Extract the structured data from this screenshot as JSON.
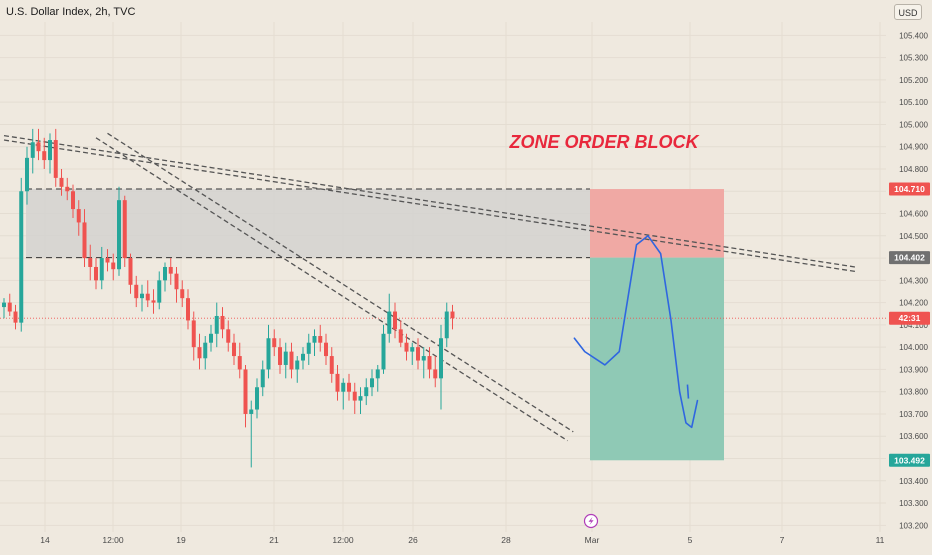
{
  "header": {
    "title": "U.S. Dollar Index, 2h, TVC",
    "currency_button": "USD"
  },
  "annotation": {
    "text": "ZONE ORDER BLOCK"
  },
  "colors": {
    "bg": "#efe9df",
    "grid": "#e4ddd2",
    "up": "#26a69a",
    "down": "#ef5350",
    "zone": "#d3d2d0",
    "stop": "#f0a9a4",
    "target": "#8fc9b5",
    "annotation": "#e8283c",
    "path": "#2f66e0",
    "trend": "#555555"
  },
  "chart_data": {
    "type": "candlestick",
    "symbol": "U.S. Dollar Index",
    "timeframe": "2h",
    "source": "TVC",
    "y_axis": {
      "range": [
        103.17,
        105.46
      ],
      "ticks": [
        103.2,
        103.3,
        103.4,
        103.5,
        103.6,
        103.7,
        103.8,
        103.9,
        104.0,
        104.1,
        104.2,
        104.3,
        104.4,
        104.5,
        104.6,
        104.7,
        104.8,
        104.9,
        105.0,
        105.1,
        105.2,
        105.3,
        105.4
      ],
      "tick_labels": [
        "103.200",
        "103.300",
        "103.400",
        "103.500",
        "103.600",
        "103.700",
        "103.800",
        "103.900",
        "104.000",
        "104.100",
        "104.200",
        "104.300",
        "104.400",
        "104.500",
        "104.600",
        "104.700",
        "104.800",
        "104.900",
        "105.000",
        "105.100",
        "105.200",
        "105.300",
        "105.400"
      ]
    },
    "x_axis": {
      "tick_labels": [
        "14",
        "12:00",
        "19",
        "21",
        "12:00",
        "26",
        "28",
        "Mar",
        "5",
        "7",
        "11"
      ]
    },
    "price_labels": [
      {
        "value": 104.71,
        "text": "104.710",
        "color": "#ef5350"
      },
      {
        "value": 104.402,
        "text": "104.402",
        "color": "#707070"
      },
      {
        "value": 104.13,
        "text": "42:31",
        "color": "#ef5350"
      },
      {
        "value": 103.492,
        "text": "103.492",
        "color": "#26a69a"
      }
    ],
    "zone": {
      "top": 104.71,
      "bottom": 104.402
    },
    "trade": {
      "entry": 104.402,
      "stop": 104.71,
      "target": 103.492
    },
    "candles": [
      [
        104.18,
        104.22,
        104.13,
        104.2
      ],
      [
        104.2,
        104.24,
        104.14,
        104.16
      ],
      [
        104.16,
        104.19,
        104.08,
        104.11
      ],
      [
        104.11,
        104.76,
        104.07,
        104.7
      ],
      [
        104.7,
        104.9,
        104.64,
        104.85
      ],
      [
        104.85,
        104.98,
        104.78,
        104.92
      ],
      [
        104.92,
        104.98,
        104.84,
        104.88
      ],
      [
        104.88,
        104.94,
        104.8,
        104.84
      ],
      [
        104.84,
        104.96,
        104.78,
        104.93
      ],
      [
        104.93,
        104.98,
        104.72,
        104.76
      ],
      [
        104.76,
        104.8,
        104.68,
        104.72
      ],
      [
        104.72,
        104.76,
        104.66,
        104.7
      ],
      [
        104.7,
        104.73,
        104.58,
        104.62
      ],
      [
        104.62,
        104.66,
        104.5,
        104.56
      ],
      [
        104.56,
        104.62,
        104.36,
        104.4
      ],
      [
        104.4,
        104.46,
        104.3,
        104.36
      ],
      [
        104.36,
        104.4,
        104.26,
        104.3
      ],
      [
        104.3,
        104.45,
        104.26,
        104.4
      ],
      [
        104.4,
        104.44,
        104.34,
        104.38
      ],
      [
        104.38,
        104.42,
        104.3,
        104.35
      ],
      [
        104.35,
        104.72,
        104.32,
        104.66
      ],
      [
        104.66,
        104.68,
        104.36,
        104.4
      ],
      [
        104.4,
        104.42,
        104.24,
        104.28
      ],
      [
        104.28,
        104.32,
        104.18,
        104.22
      ],
      [
        104.22,
        104.28,
        104.16,
        104.24
      ],
      [
        104.24,
        104.3,
        104.18,
        104.21
      ],
      [
        104.21,
        104.26,
        104.15,
        104.2
      ],
      [
        104.2,
        104.34,
        104.17,
        104.3
      ],
      [
        104.3,
        104.38,
        104.25,
        104.36
      ],
      [
        104.36,
        104.4,
        104.28,
        104.33
      ],
      [
        104.33,
        104.36,
        104.2,
        104.26
      ],
      [
        104.26,
        104.3,
        104.18,
        104.22
      ],
      [
        104.22,
        104.26,
        104.08,
        104.12
      ],
      [
        104.12,
        104.16,
        103.94,
        104.0
      ],
      [
        104.0,
        104.06,
        103.9,
        103.95
      ],
      [
        103.95,
        104.05,
        103.9,
        104.02
      ],
      [
        104.02,
        104.1,
        103.98,
        104.06
      ],
      [
        104.06,
        104.2,
        104.0,
        104.14
      ],
      [
        104.14,
        104.18,
        104.04,
        104.08
      ],
      [
        104.08,
        104.12,
        103.98,
        104.02
      ],
      [
        104.02,
        104.06,
        103.92,
        103.96
      ],
      [
        103.96,
        104.02,
        103.86,
        103.9
      ],
      [
        103.9,
        103.92,
        103.64,
        103.7
      ],
      [
        103.7,
        103.76,
        103.46,
        103.72
      ],
      [
        103.72,
        103.86,
        103.68,
        103.82
      ],
      [
        103.82,
        103.94,
        103.78,
        103.9
      ],
      [
        103.9,
        104.1,
        103.86,
        104.04
      ],
      [
        104.04,
        104.08,
        103.96,
        104.0
      ],
      [
        104.0,
        104.04,
        103.88,
        103.92
      ],
      [
        103.92,
        104.02,
        103.86,
        103.98
      ],
      [
        103.98,
        104.02,
        103.86,
        103.9
      ],
      [
        103.9,
        103.96,
        103.84,
        103.94
      ],
      [
        103.94,
        104.0,
        103.9,
        103.97
      ],
      [
        103.97,
        104.06,
        103.92,
        104.02
      ],
      [
        104.02,
        104.08,
        103.96,
        104.05
      ],
      [
        104.05,
        104.1,
        103.98,
        104.02
      ],
      [
        104.02,
        104.06,
        103.92,
        103.96
      ],
      [
        103.96,
        104.0,
        103.84,
        103.88
      ],
      [
        103.88,
        103.92,
        103.76,
        103.8
      ],
      [
        103.8,
        103.86,
        103.72,
        103.84
      ],
      [
        103.84,
        103.88,
        103.76,
        103.8
      ],
      [
        103.8,
        103.84,
        103.7,
        103.76
      ],
      [
        103.76,
        103.82,
        103.7,
        103.78
      ],
      [
        103.78,
        103.86,
        103.74,
        103.82
      ],
      [
        103.82,
        103.9,
        103.78,
        103.86
      ],
      [
        103.86,
        103.92,
        103.8,
        103.9
      ],
      [
        103.9,
        104.1,
        103.88,
        104.06
      ],
      [
        104.06,
        104.24,
        104.02,
        104.16
      ],
      [
        104.16,
        104.2,
        104.04,
        104.08
      ],
      [
        104.08,
        104.12,
        104.0,
        104.02
      ],
      [
        104.02,
        104.06,
        103.94,
        103.98
      ],
      [
        103.98,
        104.02,
        103.92,
        104.0
      ],
      [
        104.0,
        104.04,
        103.9,
        103.94
      ],
      [
        103.94,
        104.0,
        103.86,
        103.96
      ],
      [
        103.96,
        104.0,
        103.86,
        103.9
      ],
      [
        103.9,
        103.96,
        103.82,
        103.86
      ],
      [
        103.86,
        104.1,
        103.72,
        104.04
      ],
      [
        104.04,
        104.2,
        104.0,
        104.16
      ],
      [
        104.16,
        104.19,
        104.08,
        104.13
      ]
    ],
    "trendlines": [
      {
        "t1": 0,
        "p1": 104.95,
        "t2": 148,
        "p2": 104.36
      },
      {
        "t1": 0,
        "p1": 104.93,
        "t2": 148,
        "p2": 104.34
      },
      {
        "t1": 18,
        "p1": 104.96,
        "t2": 99,
        "p2": 103.62
      },
      {
        "t1": 16,
        "p1": 104.94,
        "t2": 98,
        "p2": 103.58
      }
    ],
    "projection": [
      [
        99.2,
        104.04
      ],
      [
        101,
        103.98
      ],
      [
        104.5,
        103.92
      ],
      [
        107,
        103.98
      ],
      [
        108.5,
        104.22
      ],
      [
        110,
        104.46
      ],
      [
        112,
        104.5
      ],
      [
        114.2,
        104.42
      ],
      [
        116,
        104.12
      ],
      [
        117.5,
        103.8
      ],
      [
        118.6,
        103.66
      ],
      [
        119.6,
        103.64
      ],
      [
        120.6,
        103.76
      ]
    ]
  }
}
